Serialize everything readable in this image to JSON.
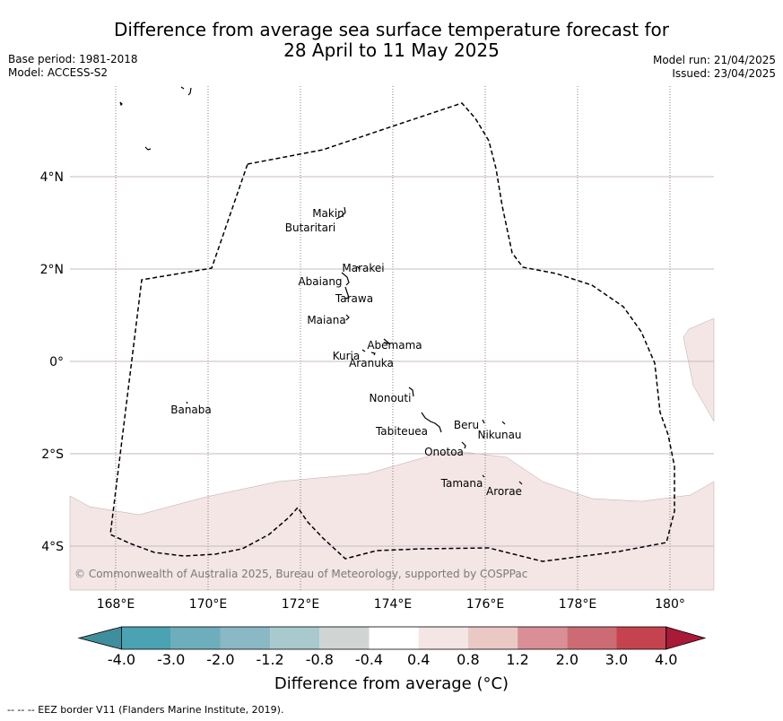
{
  "header": {
    "title_line1": "Difference from average sea surface temperature forecast for",
    "title_line2": "28 April to 11 May 2025",
    "base_period": "Base period: 1981-2018",
    "model": "Model: ACCESS-S2",
    "model_run": "Model run: 21/04/2025",
    "issued": "Issued: 23/04/2025"
  },
  "map": {
    "x_ticks": [
      "168°E",
      "170°E",
      "172°E",
      "174°E",
      "176°E",
      "178°E",
      "180°"
    ],
    "y_ticks": [
      "4°N",
      "2°N",
      "0°",
      "2°S",
      "4°S"
    ],
    "lon_range": [
      167,
      181
    ],
    "lat_range": [
      -5,
      6
    ],
    "places": [
      {
        "name": "Makin",
        "lon": 172.9,
        "lat": 3.3
      },
      {
        "name": "Butaritari",
        "lon": 172.8,
        "lat": 2.9
      },
      {
        "name": "Marakei",
        "lon": 173.3,
        "lat": 2.0
      },
      {
        "name": "Abaiang",
        "lon": 172.7,
        "lat": 1.8
      },
      {
        "name": "Tarawa",
        "lon": 173.0,
        "lat": 1.4
      },
      {
        "name": "Maiana",
        "lon": 173.0,
        "lat": 0.9
      },
      {
        "name": "Abemama",
        "lon": 173.9,
        "lat": 0.4
      },
      {
        "name": "Kuria",
        "lon": 173.4,
        "lat": 0.2
      },
      {
        "name": "Aranuka",
        "lon": 173.6,
        "lat": 0.2
      },
      {
        "name": "Nonouti",
        "lon": 174.4,
        "lat": -0.7
      },
      {
        "name": "Banaba",
        "lon": 169.5,
        "lat": -0.9
      },
      {
        "name": "Tabiteuea",
        "lon": 174.8,
        "lat": -1.3
      },
      {
        "name": "Beru",
        "lon": 176.0,
        "lat": -1.3
      },
      {
        "name": "Nikunau",
        "lon": 176.5,
        "lat": -1.4
      },
      {
        "name": "Onotoa",
        "lon": 175.6,
        "lat": -1.8
      },
      {
        "name": "Tamana",
        "lon": 176.0,
        "lat": -2.5
      },
      {
        "name": "Arorae",
        "lon": 176.8,
        "lat": -2.6
      }
    ],
    "copyright": "© Commonwealth of Australia 2025, Bureau of Meteorology, supported by COSPPac",
    "shading_color": "#f3e6e5",
    "eez_color": "#000000",
    "grid_color": "#c9b9c3"
  },
  "colorbar": {
    "colors": [
      "#3f8e9d",
      "#4aa2b2",
      "#6eadbb",
      "#8ab8c4",
      "#a8c9ce",
      "#d0d5d4",
      "#ffffff",
      "#f4e6e4",
      "#eac9c5",
      "#da8e95",
      "#cd6b74",
      "#c4434f",
      "#a91a38"
    ],
    "tick_labels": [
      "-4.0",
      "-3.0",
      "-2.0",
      "-1.2",
      "-0.8",
      "-0.4",
      "0.4",
      "0.8",
      "1.2",
      "2.0",
      "3.0",
      "4.0"
    ],
    "label": "Difference from average (°C)"
  },
  "footnote": "--  --  -- EEZ border V11 (Flanders Marine Institute, 2019)."
}
